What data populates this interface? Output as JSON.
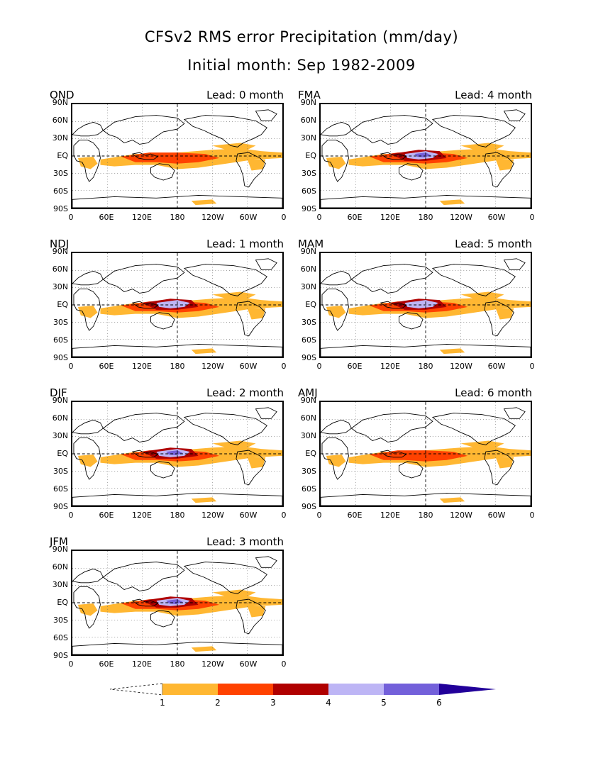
{
  "title": "CFSv2 RMS error Precipitation (mm/day)",
  "subtitle": "Initial month: Sep 1982-2009",
  "y_ticks": [
    "90N",
    "60N",
    "30N",
    "EQ",
    "30S",
    "60S",
    "90S"
  ],
  "x_ticks": [
    "0",
    "60E",
    "120E",
    "180",
    "120W",
    "60W",
    "0"
  ],
  "panels": [
    {
      "season": "OND",
      "lead": "Lead: 0 month",
      "intensity": 1
    },
    {
      "season": "FMA",
      "lead": "Lead: 4 month",
      "intensity": 3
    },
    {
      "season": "NDJ",
      "lead": "Lead: 1 month",
      "intensity": 2
    },
    {
      "season": "MAM",
      "lead": "Lead: 5 month",
      "intensity": 2
    },
    {
      "season": "DJF",
      "lead": "Lead: 2 month",
      "intensity": 3
    },
    {
      "season": "AMJ",
      "lead": "Lead: 6 month",
      "intensity": 1
    },
    {
      "season": "JFM",
      "lead": "Lead: 3 month",
      "intensity": 3
    }
  ],
  "colorbar": {
    "labels": [
      "1",
      "2",
      "3",
      "4",
      "5",
      "6"
    ],
    "colors": [
      "#ffb732",
      "#ff4200",
      "#b00000",
      "#bdb5f5",
      "#7360da",
      "#22009a"
    ]
  },
  "colors": {
    "coast": "#000000",
    "grid": "#000000"
  }
}
